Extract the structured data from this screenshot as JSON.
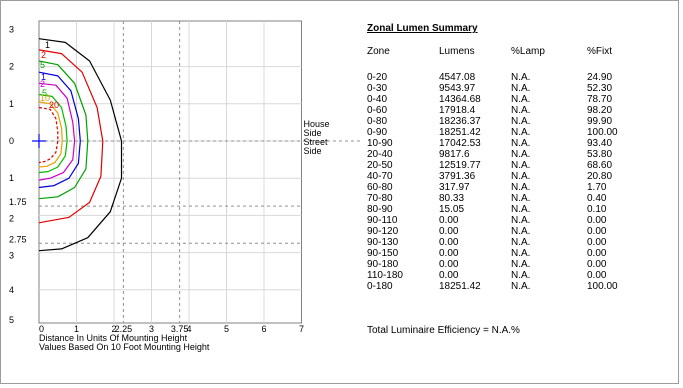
{
  "chart_data": {
    "type": "line",
    "title": "",
    "xlabel": "Distance In Units Of Mounting Height",
    "subnote": "Values Based On 10 Foot Mounting Height",
    "x_ticks": [
      "0",
      "1",
      "2",
      "2.25",
      "3",
      "3.75",
      "4",
      "5",
      "6",
      "7"
    ],
    "y_ticks_top": [
      "3",
      "2",
      "1",
      "0"
    ],
    "y_ticks_bottom": [
      "1",
      "1.75",
      "2",
      "2.75",
      "3",
      "4",
      "5"
    ],
    "xlim": [
      0,
      7
    ],
    "ylim": [
      -5,
      3
    ],
    "side_labels": {
      "house": "House Side",
      "street": "Street Side"
    },
    "contour_labels": [
      "1",
      "2",
      "5",
      "1",
      "2",
      "5",
      "10",
      "20"
    ],
    "series": [
      {
        "label": "1",
        "color": "#000000",
        "points": [
          [
            0,
            2.75
          ],
          [
            0.7,
            2.65
          ],
          [
            1.35,
            2.15
          ],
          [
            1.9,
            1.1
          ],
          [
            2.2,
            0
          ],
          [
            2.2,
            -1
          ],
          [
            1.9,
            -1.9
          ],
          [
            1.3,
            -2.6
          ],
          [
            0.6,
            -2.9
          ],
          [
            0,
            -2.95
          ]
        ]
      },
      {
        "label": "2",
        "color": "#e00000",
        "points": [
          [
            0,
            2.45
          ],
          [
            0.6,
            2.35
          ],
          [
            1.15,
            1.85
          ],
          [
            1.55,
            0.9
          ],
          [
            1.7,
            0
          ],
          [
            1.65,
            -0.95
          ],
          [
            1.35,
            -1.65
          ],
          [
            0.8,
            -2.05
          ],
          [
            0,
            -2.2
          ]
        ]
      },
      {
        "label": "5",
        "color": "#00a000",
        "points": [
          [
            0,
            2.15
          ],
          [
            0.5,
            2.05
          ],
          [
            0.95,
            1.55
          ],
          [
            1.25,
            0.7
          ],
          [
            1.3,
            0
          ],
          [
            1.25,
            -0.75
          ],
          [
            0.95,
            -1.25
          ],
          [
            0.5,
            -1.5
          ],
          [
            0,
            -1.55
          ]
        ]
      },
      {
        "label": "1",
        "color": "#0000dd",
        "points": [
          [
            0,
            1.85
          ],
          [
            0.5,
            1.75
          ],
          [
            0.85,
            1.35
          ],
          [
            1.05,
            0.6
          ],
          [
            1.1,
            0
          ],
          [
            1.05,
            -0.6
          ],
          [
            0.8,
            -1.0
          ],
          [
            0.4,
            -1.2
          ],
          [
            0,
            -1.25
          ]
        ]
      },
      {
        "label": "2",
        "color": "#cc00cc",
        "points": [
          [
            0,
            1.55
          ],
          [
            0.45,
            1.5
          ],
          [
            0.75,
            1.15
          ],
          [
            0.9,
            0.5
          ],
          [
            0.95,
            0
          ],
          [
            0.9,
            -0.5
          ],
          [
            0.65,
            -0.85
          ],
          [
            0.3,
            -1.0
          ],
          [
            0,
            -1.05
          ]
        ]
      },
      {
        "label": "5",
        "color": "#00bb00",
        "points": [
          [
            0,
            1.25
          ],
          [
            0.35,
            1.2
          ],
          [
            0.6,
            0.9
          ],
          [
            0.72,
            0.4
          ],
          [
            0.75,
            0
          ],
          [
            0.7,
            -0.4
          ],
          [
            0.5,
            -0.7
          ],
          [
            0.25,
            -0.82
          ],
          [
            0,
            -0.85
          ]
        ]
      },
      {
        "label": "10",
        "color": "#e8a000",
        "points": [
          [
            0,
            1.05
          ],
          [
            0.3,
            1.0
          ],
          [
            0.5,
            0.75
          ],
          [
            0.6,
            0.35
          ],
          [
            0.62,
            0
          ],
          [
            0.58,
            -0.35
          ],
          [
            0.42,
            -0.58
          ],
          [
            0.2,
            -0.68
          ],
          [
            0,
            -0.7
          ]
        ]
      },
      {
        "label": "20",
        "color": "#dd0000",
        "dashed": true,
        "points": [
          [
            0,
            0.9
          ],
          [
            0.3,
            0.85
          ],
          [
            0.45,
            0.6
          ],
          [
            0.5,
            0.25
          ],
          [
            0.5,
            0
          ],
          [
            0.45,
            -0.3
          ],
          [
            0.3,
            -0.48
          ],
          [
            0.15,
            -0.55
          ],
          [
            0,
            -0.58
          ]
        ]
      }
    ]
  },
  "summary": {
    "title": "Zonal Lumen Summary",
    "columns": [
      "Zone",
      "Lumens",
      "%Lamp",
      "%Fixt"
    ],
    "rows": [
      [
        "0-20",
        "4547.08",
        "N.A.",
        "24.90"
      ],
      [
        "0-30",
        "9543.97",
        "N.A.",
        "52.30"
      ],
      [
        "0-40",
        "14364.68",
        "N.A.",
        "78.70"
      ],
      [
        "0-60",
        "17918.4",
        "N.A.",
        "98.20"
      ],
      [
        "0-80",
        "18236.37",
        "N.A.",
        "99.90"
      ],
      [
        "0-90",
        "18251.42",
        "N.A.",
        "100.00"
      ],
      [
        "10-90",
        "17042.53",
        "N.A.",
        "93.40"
      ],
      [
        "20-40",
        "9817.6",
        "N.A.",
        "53.80"
      ],
      [
        "20-50",
        "12519.77",
        "N.A.",
        "68.60"
      ],
      [
        "40-70",
        "3791.36",
        "N.A.",
        "20.80"
      ],
      [
        "60-80",
        "317.97",
        "N.A.",
        "1.70"
      ],
      [
        "70-80",
        "80.33",
        "N.A.",
        "0.40"
      ],
      [
        "80-90",
        "15.05",
        "N.A.",
        "0.10"
      ],
      [
        "90-110",
        "0.00",
        "N.A.",
        "0.00"
      ],
      [
        "90-120",
        "0.00",
        "N.A.",
        "0.00"
      ],
      [
        "90-130",
        "0.00",
        "N.A.",
        "0.00"
      ],
      [
        "90-150",
        "0.00",
        "N.A.",
        "0.00"
      ],
      [
        "90-180",
        "0.00",
        "N.A.",
        "0.00"
      ],
      [
        "110-180",
        "0.00",
        "N.A.",
        "0.00"
      ],
      [
        "0-180",
        "18251.42",
        "N.A.",
        "100.00"
      ]
    ],
    "efficiency": "Total Luminaire Efficiency = N.A.%"
  }
}
